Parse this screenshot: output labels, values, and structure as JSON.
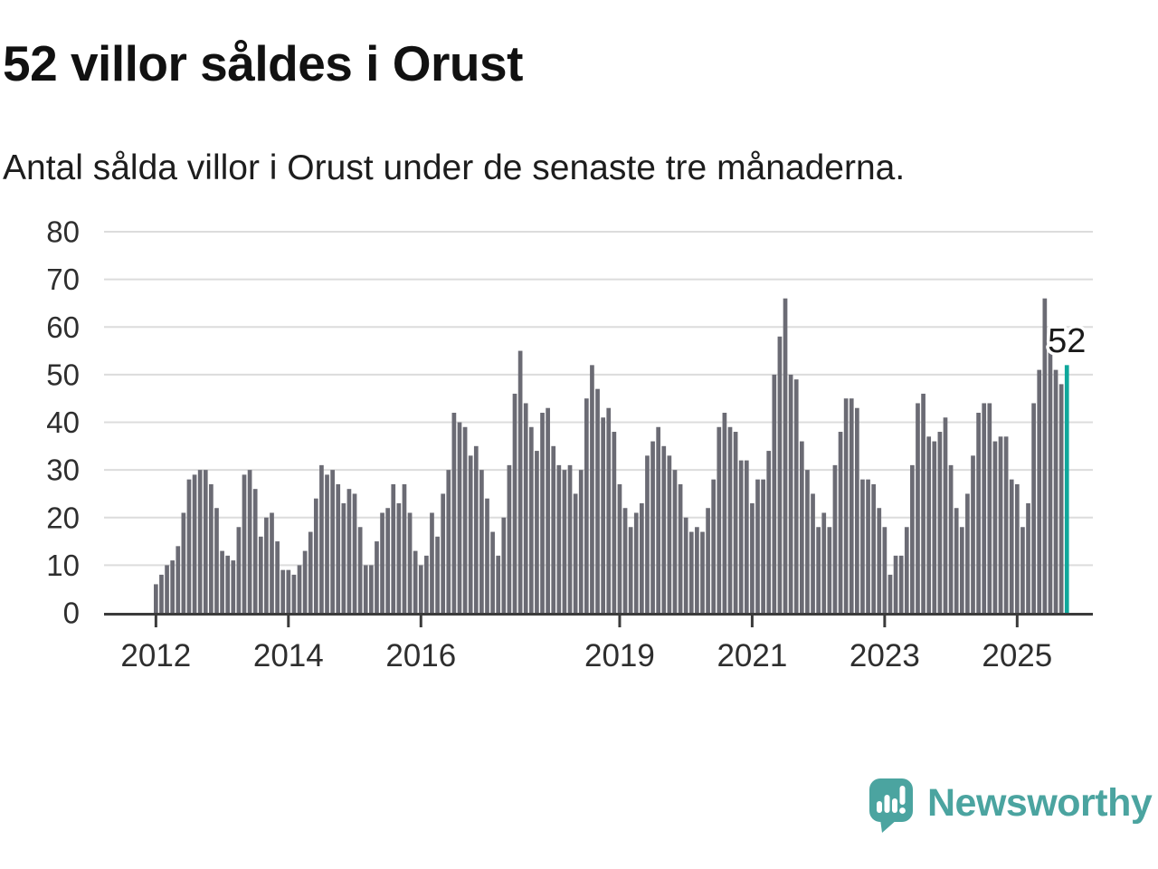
{
  "header": {
    "title": "52 villor såldes i Orust",
    "subtitle": "Antal sålda villor i Orust under de senaste tre månaderna."
  },
  "chart_data": {
    "type": "bar",
    "title": "52 villor såldes i Orust",
    "subtitle": "Antal sålda villor i Orust under de senaste tre månaderna.",
    "xlabel": "",
    "ylabel": "",
    "ylim": [
      0,
      80
    ],
    "y_ticks": [
      0,
      10,
      20,
      30,
      40,
      50,
      60,
      70,
      80
    ],
    "grid": "horizontal",
    "legend": "none",
    "x_unit": "month",
    "x_tick_labels": [
      "2012",
      "2014",
      "2016",
      "2019",
      "2021",
      "2023",
      "2025"
    ],
    "x_tick_indices": [
      0,
      24,
      48,
      84,
      108,
      132,
      156
    ],
    "values": [
      6,
      8,
      10,
      11,
      14,
      21,
      28,
      29,
      30,
      30,
      27,
      22,
      13,
      12,
      11,
      18,
      29,
      30,
      26,
      16,
      20,
      21,
      15,
      9,
      9,
      8,
      10,
      13,
      17,
      24,
      31,
      29,
      30,
      27,
      23,
      26,
      25,
      18,
      10,
      10,
      15,
      21,
      22,
      27,
      23,
      27,
      21,
      13,
      10,
      12,
      21,
      16,
      25,
      30,
      42,
      40,
      39,
      33,
      35,
      30,
      24,
      17,
      12,
      20,
      31,
      46,
      55,
      44,
      39,
      34,
      42,
      43,
      35,
      31,
      30,
      31,
      25,
      30,
      45,
      52,
      47,
      41,
      43,
      38,
      27,
      22,
      18,
      21,
      23,
      33,
      36,
      39,
      35,
      33,
      30,
      27,
      20,
      17,
      18,
      17,
      22,
      28,
      39,
      42,
      39,
      38,
      32,
      32,
      23,
      28,
      28,
      34,
      50,
      58,
      66,
      50,
      49,
      36,
      30,
      25,
      18,
      21,
      18,
      31,
      38,
      45,
      45,
      43,
      28,
      28,
      27,
      22,
      18,
      8,
      12,
      12,
      18,
      31,
      44,
      46,
      37,
      36,
      38,
      41,
      31,
      22,
      18,
      25,
      33,
      42,
      44,
      44,
      36,
      37,
      37,
      28,
      27,
      18,
      23,
      44,
      51,
      66,
      55,
      51,
      48,
      52
    ],
    "highlight_index": 165,
    "highlight_label": "52",
    "colors": {
      "bar": "#6b6b74",
      "highlight": "#0fa79b",
      "grid": "#dcdcdc",
      "axis": "#3b3b3b",
      "tick_text": "#2e2e2e",
      "annotation_text": "#1a1a1a"
    }
  },
  "brand": {
    "name": "Newsworthy",
    "color": "#4ba4a0"
  }
}
